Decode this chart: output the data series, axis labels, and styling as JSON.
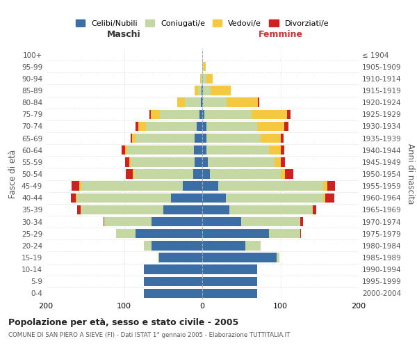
{
  "age_groups": [
    "0-4",
    "5-9",
    "10-14",
    "15-19",
    "20-24",
    "25-29",
    "30-34",
    "35-39",
    "40-44",
    "45-49",
    "50-54",
    "55-59",
    "60-64",
    "65-69",
    "70-74",
    "75-79",
    "80-84",
    "85-89",
    "90-94",
    "95-99",
    "100+"
  ],
  "birth_years": [
    "2000-2004",
    "1995-1999",
    "1990-1994",
    "1985-1989",
    "1980-1984",
    "1975-1979",
    "1970-1974",
    "1965-1969",
    "1960-1964",
    "1955-1959",
    "1950-1954",
    "1945-1949",
    "1940-1944",
    "1935-1939",
    "1930-1934",
    "1925-1929",
    "1920-1924",
    "1915-1919",
    "1910-1914",
    "1905-1909",
    "≤ 1904"
  ],
  "colors": {
    "celibi": "#3a6ea5",
    "coniugati": "#c5d8a4",
    "vedovi": "#f5c842",
    "divorziati": "#cc2222"
  },
  "maschi": {
    "celibi": [
      75,
      75,
      75,
      55,
      65,
      85,
      65,
      50,
      40,
      25,
      12,
      10,
      11,
      10,
      7,
      4,
      2,
      1,
      0,
      0,
      0
    ],
    "coniugati": [
      0,
      0,
      0,
      2,
      10,
      25,
      60,
      105,
      120,
      130,
      75,
      82,
      85,
      75,
      65,
      50,
      20,
      4,
      2,
      0,
      0
    ],
    "vedovi": [
      0,
      0,
      0,
      0,
      0,
      0,
      0,
      1,
      2,
      2,
      2,
      1,
      3,
      5,
      10,
      12,
      10,
      5,
      1,
      0,
      0
    ],
    "divorziati": [
      0,
      0,
      0,
      0,
      0,
      0,
      1,
      4,
      6,
      10,
      9,
      6,
      4,
      2,
      3,
      2,
      0,
      0,
      0,
      0,
      0
    ]
  },
  "femmine": {
    "celibi": [
      70,
      70,
      70,
      95,
      55,
      85,
      50,
      35,
      30,
      20,
      10,
      7,
      5,
      5,
      5,
      3,
      1,
      1,
      0,
      0,
      0
    ],
    "coniugati": [
      0,
      0,
      0,
      4,
      20,
      40,
      75,
      105,
      125,
      135,
      90,
      85,
      80,
      70,
      65,
      60,
      30,
      10,
      5,
      2,
      0
    ],
    "vedovi": [
      0,
      0,
      0,
      0,
      0,
      0,
      0,
      1,
      2,
      5,
      6,
      8,
      15,
      25,
      35,
      45,
      40,
      25,
      8,
      2,
      0
    ],
    "divorziati": [
      0,
      0,
      0,
      0,
      0,
      1,
      4,
      5,
      12,
      10,
      10,
      6,
      5,
      4,
      5,
      5,
      2,
      0,
      0,
      0,
      0
    ]
  },
  "title": "Popolazione per età, sesso e stato civile - 2005",
  "subtitle": "COMUNE DI SAN PIERO A SIEVE (FI) - Dati ISTAT 1° gennaio 2005 - Elaborazione TUTTITALIA.IT",
  "xlabel_left": "Maschi",
  "xlabel_right": "Femmine",
  "ylabel_left": "Fasce di età",
  "ylabel_right": "Anni di nascita",
  "xlim": 200,
  "legend_labels": [
    "Celibi/Nubili",
    "Coniugati/e",
    "Vedovi/e",
    "Divorziati/e"
  ],
  "bg_color": "#ffffff",
  "grid_color": "#cccccc"
}
